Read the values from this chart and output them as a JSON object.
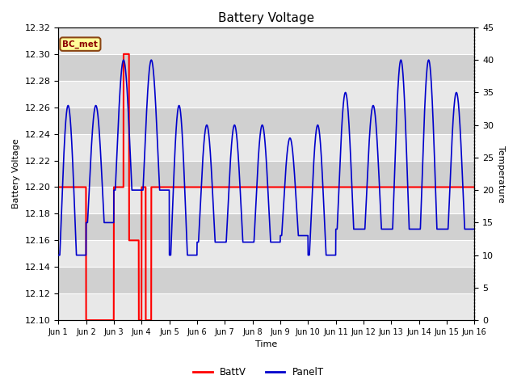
{
  "title": "Battery Voltage",
  "xlabel": "Time",
  "ylabel_left": "Battery Voltage",
  "ylabel_right": "Temperature",
  "annotation_text": "BC_met",
  "ylim_left": [
    12.1,
    12.32
  ],
  "ylim_right": [
    0,
    45
  ],
  "yticks_left": [
    12.1,
    12.12,
    12.14,
    12.16,
    12.18,
    12.2,
    12.22,
    12.24,
    12.26,
    12.28,
    12.3,
    12.32
  ],
  "yticks_right": [
    0,
    5,
    10,
    15,
    20,
    25,
    30,
    35,
    40,
    45
  ],
  "xtick_labels": [
    "Jun 1",
    "Jun 2",
    "Jun 3",
    "Jun 4",
    "Jun 5",
    "Jun 6",
    "Jun 7",
    "Jun 8",
    "Jun 9",
    "Jun 10",
    "Jun 11",
    "Jun 12",
    "Jun 13",
    "Jun 14",
    "Jun 15",
    "Jun 16"
  ],
  "batt_color": "#FF0000",
  "panel_color": "#0000CC",
  "plot_bg_color": "#DCDCDC",
  "legend_batt": "BattV",
  "legend_panel": "PanelT",
  "grid_color": "#C8C8C8",
  "stripe_color": "#C8C8C8",
  "title_fontsize": 11,
  "axis_label_fontsize": 8,
  "tick_fontsize": 8
}
